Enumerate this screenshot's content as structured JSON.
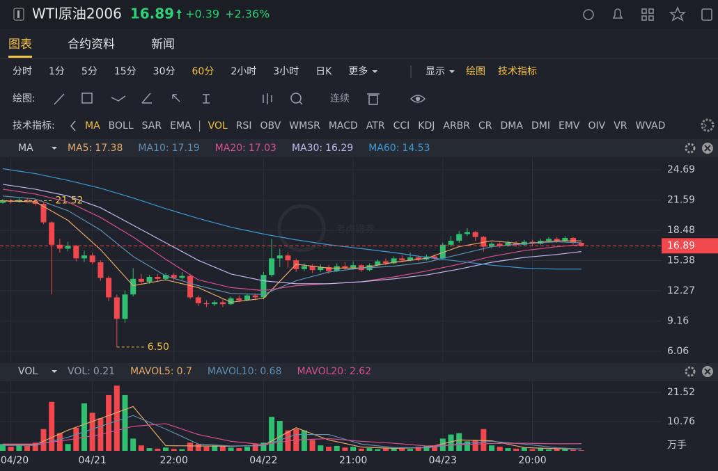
{
  "header": {
    "title": "WTI原油2006",
    "price": 16.89,
    "change": "+0.39",
    "change_pct": "+2.36%"
  },
  "tabs": [
    "图表",
    "合约资料",
    "新闻"
  ],
  "active_tab": 0,
  "periods": [
    "分时",
    "1分",
    "5分",
    "15分",
    "30分",
    "60分",
    "2小时",
    "3小时",
    "日K",
    "更多"
  ],
  "active_period": 5,
  "display_menu": [
    "显示",
    "绘图",
    "技术指标"
  ],
  "draw_tools": {
    "label": "绘图:",
    "continuous": "连续"
  },
  "indicator_bar": {
    "label": "技术指标:",
    "items": [
      "MA",
      "BOLL",
      "SAR",
      "EMA",
      "VOL",
      "RSI",
      "OBV",
      "WMSR",
      "MACD",
      "ATR",
      "CCI",
      "KDJ",
      "ARBR",
      "CR",
      "DMA",
      "DMI",
      "EMV",
      "OIV",
      "VR",
      "WVAD"
    ],
    "active": [
      0,
      4
    ]
  },
  "watermark": "老虎證券",
  "chart_data": [
    {
      "type": "candlestick",
      "indicator": "MA",
      "up_color": "#2fbf71",
      "down_color": "#f0484c",
      "grid": true,
      "xlim": [
        -0.34,
        80.85
      ],
      "ylim": [
        4.99,
        25.98
      ],
      "yticks": [
        24.69,
        21.59,
        18.48,
        15.38,
        12.27,
        9.16,
        6.06
      ],
      "x": [
        0,
        1,
        2,
        3,
        4,
        5,
        6,
        7,
        8,
        9,
        10,
        11,
        12,
        13,
        14,
        15,
        16,
        17,
        18,
        19,
        20,
        21,
        22,
        23,
        24,
        25,
        26,
        27,
        28,
        29,
        30,
        31,
        32,
        33,
        34,
        35,
        36,
        37,
        38,
        39,
        40,
        41,
        42,
        43,
        44,
        45,
        46,
        47,
        48,
        49,
        50,
        51,
        52,
        53,
        54,
        55,
        56,
        57,
        58,
        59,
        60,
        61,
        62,
        63,
        64,
        65,
        66,
        67,
        68,
        69,
        70,
        71
      ],
      "open": [
        21.3,
        21.5,
        21.4,
        21.6,
        21.5,
        21.2,
        19.3,
        17.0,
        16.6,
        16.9,
        15.6,
        15.9,
        15.2,
        13.6,
        11.6,
        9.4,
        11.9,
        13.5,
        13.2,
        13.7,
        13.5,
        13.9,
        13.6,
        13.8,
        11.6,
        11.0,
        10.9,
        11.1,
        10.9,
        11.5,
        11.3,
        11.8,
        11.6,
        13.9,
        15.6,
        15.9,
        15.4,
        14.5,
        14.8,
        14.4,
        14.7,
        14.3,
        14.8,
        14.6,
        14.9,
        14.4,
        14.9,
        15.3,
        15.1,
        15.6,
        15.4,
        15.7,
        15.5,
        15.8,
        15.6,
        17.0,
        17.4,
        18.1,
        18.3,
        17.8,
        16.8,
        17.1,
        16.9,
        17.2,
        17.0,
        17.3,
        17.1,
        17.4,
        17.6,
        17.4,
        17.7,
        17.2
      ],
      "high": [
        21.7,
        21.7,
        21.8,
        21.8,
        21.7,
        21.3,
        19.4,
        17.6,
        17.3,
        17.0,
        16.4,
        16.2,
        15.4,
        13.8,
        11.9,
        12.3,
        14.6,
        14.0,
        13.9,
        14.0,
        14.1,
        14.1,
        14.2,
        13.9,
        11.8,
        11.3,
        11.3,
        11.4,
        11.7,
        11.8,
        12.0,
        12.0,
        14.2,
        17.6,
        16.6,
        16.2,
        15.6,
        15.1,
        15.0,
        15.0,
        14.9,
        15.1,
        15.2,
        15.3,
        15.0,
        15.1,
        15.5,
        15.6,
        15.8,
        15.9,
        16.2,
        15.9,
        16.0,
        16.0,
        17.2,
        17.9,
        18.4,
        18.7,
        18.4,
        17.9,
        17.3,
        17.3,
        17.4,
        17.4,
        17.5,
        17.5,
        17.6,
        17.8,
        17.8,
        17.9,
        17.8,
        17.3
      ],
      "low": [
        21.2,
        21.2,
        21.3,
        21.3,
        21.0,
        19.1,
        11.9,
        16.2,
        16.3,
        15.3,
        15.2,
        15.0,
        13.3,
        11.2,
        6.5,
        9.0,
        11.7,
        12.9,
        13.0,
        13.2,
        13.3,
        13.3,
        13.4,
        11.4,
        10.7,
        10.6,
        10.7,
        10.6,
        10.8,
        11.1,
        11.2,
        11.3,
        11.4,
        13.7,
        14.7,
        14.6,
        14.2,
        14.3,
        14.1,
        14.2,
        14.0,
        14.2,
        14.4,
        14.5,
        14.2,
        14.3,
        14.8,
        14.9,
        15.0,
        15.2,
        15.3,
        15.3,
        15.4,
        15.4,
        15.5,
        16.8,
        17.2,
        17.9,
        17.4,
        16.3,
        16.6,
        16.7,
        16.8,
        16.8,
        16.9,
        16.9,
        17.0,
        17.2,
        17.2,
        17.3,
        17.0,
        16.8
      ],
      "close": [
        21.5,
        21.4,
        21.6,
        21.5,
        21.2,
        19.3,
        17.0,
        16.6,
        16.9,
        15.6,
        15.9,
        15.2,
        13.6,
        11.6,
        9.4,
        11.9,
        13.5,
        13.2,
        13.7,
        13.5,
        13.9,
        13.6,
        13.8,
        11.6,
        11.0,
        10.9,
        11.1,
        10.9,
        11.5,
        11.3,
        11.8,
        11.6,
        13.9,
        15.6,
        15.9,
        15.4,
        14.5,
        14.8,
        14.4,
        14.7,
        14.3,
        14.8,
        14.6,
        14.9,
        14.4,
        14.9,
        15.3,
        15.1,
        15.6,
        15.4,
        15.7,
        15.5,
        15.8,
        15.6,
        17.0,
        17.4,
        18.1,
        18.3,
        17.8,
        16.8,
        17.1,
        16.9,
        17.2,
        17.0,
        17.3,
        17.1,
        17.4,
        17.6,
        17.4,
        17.7,
        17.2,
        16.89
      ],
      "last_price": 16.89,
      "annotations": [
        {
          "x": 2,
          "value": 21.52
        },
        {
          "x": 14,
          "value": 6.5,
          "label": "6.50"
        }
      ],
      "series": [
        {
          "name": "MA5:",
          "last": 17.38,
          "color": "#e7a96b",
          "x": [
            0,
            4,
            8,
            12,
            16,
            20,
            24,
            28,
            32,
            36,
            40,
            44,
            48,
            52,
            56,
            60,
            64,
            68,
            71
          ],
          "values": [
            21.5,
            21.4,
            19.5,
            16.5,
            12.8,
            13.4,
            12.6,
            11.1,
            11.5,
            15.0,
            14.6,
            14.6,
            15.2,
            15.6,
            16.8,
            17.4,
            17.1,
            17.4,
            17.4
          ]
        },
        {
          "name": "MA10:",
          "last": 17.19,
          "color": "#5f8fb5",
          "x": [
            0,
            4,
            8,
            12,
            16,
            20,
            24,
            28,
            32,
            36,
            40,
            44,
            48,
            52,
            56,
            60,
            64,
            68,
            71
          ],
          "values": [
            22.0,
            21.7,
            20.5,
            18.5,
            15.8,
            13.8,
            12.8,
            12.0,
            11.9,
            13.3,
            14.2,
            14.6,
            14.8,
            15.2,
            16.0,
            16.8,
            17.1,
            17.3,
            17.2
          ]
        },
        {
          "name": "MA20:",
          "last": 17.03,
          "color": "#d9508f",
          "x": [
            0,
            4,
            8,
            12,
            16,
            20,
            24,
            28,
            32,
            36,
            40,
            44,
            48,
            52,
            56,
            60,
            64,
            68,
            71
          ],
          "values": [
            22.7,
            22.2,
            21.4,
            19.8,
            17.8,
            15.5,
            13.4,
            12.6,
            12.3,
            12.8,
            13.0,
            13.2,
            13.7,
            14.3,
            15.0,
            15.8,
            16.4,
            16.8,
            17.0
          ]
        },
        {
          "name": "MA30:",
          "last": 16.29,
          "color": "#c6b6f2",
          "x": [
            0,
            4,
            8,
            12,
            16,
            20,
            24,
            28,
            32,
            36,
            40,
            44,
            48,
            52,
            56,
            60,
            64,
            68,
            71
          ],
          "values": [
            23.2,
            22.7,
            22.0,
            20.8,
            19.0,
            17.2,
            15.4,
            14.0,
            13.3,
            13.0,
            13.0,
            13.2,
            13.5,
            13.9,
            14.5,
            15.2,
            15.7,
            16.0,
            16.3
          ]
        },
        {
          "name": "MA60:",
          "last": 14.53,
          "color": "#3d9ad6",
          "x": [
            0,
            4,
            8,
            12,
            16,
            20,
            24,
            28,
            32,
            36,
            40,
            44,
            48,
            52,
            56,
            60,
            64,
            68,
            71
          ],
          "values": [
            24.8,
            24.3,
            23.6,
            22.8,
            21.8,
            20.7,
            19.7,
            18.8,
            18.1,
            17.5,
            17.0,
            16.6,
            16.2,
            15.7,
            15.3,
            14.9,
            14.6,
            14.5,
            14.5
          ]
        }
      ]
    },
    {
      "type": "bar",
      "indicator": "VOL",
      "unit": "万手",
      "grid": true,
      "xlim": [
        -0.34,
        80.85
      ],
      "ylim": [
        0,
        25.6
      ],
      "yticks": [
        21.52,
        10.76
      ],
      "xticks": [
        {
          "value": 1,
          "label": "04/20"
        },
        {
          "value": 11,
          "label": "04/21"
        },
        {
          "value": 21,
          "label": "22:00"
        },
        {
          "value": 32,
          "label": "04/22"
        },
        {
          "value": 43,
          "label": "21:00"
        },
        {
          "value": 54,
          "label": "04/23"
        },
        {
          "value": 65,
          "label": "20:00"
        }
      ],
      "values": [
        2.5,
        1.5,
        2.0,
        1.8,
        3.0,
        8.0,
        18.0,
        6.5,
        2.5,
        8.5,
        17.5,
        14.0,
        12.0,
        20.5,
        24.0,
        20.5,
        4.5,
        2.0,
        1.0,
        0.8,
        1.2,
        0.7,
        0.6,
        3.0,
        2.5,
        1.5,
        2.0,
        1.8,
        1.2,
        1.0,
        1.5,
        2.5,
        3.0,
        12.5,
        11.0,
        7.5,
        8.0,
        7.5,
        4.0,
        2.0,
        1.5,
        1.8,
        1.2,
        1.5,
        0.8,
        1.0,
        0.6,
        1.2,
        1.0,
        0.8,
        0.7,
        1.5,
        1.8,
        2.0,
        4.5,
        6.0,
        6.5,
        3.5,
        4.0,
        8.0,
        2.0,
        1.5,
        1.0,
        0.8,
        1.2,
        0.6,
        0.9,
        0.5,
        0.7,
        0.6,
        0.4,
        0.21
      ],
      "legend_name": "VOL:",
      "legend_value": 0.21,
      "series": [
        {
          "name": "MAVOL5:",
          "last": 0.7,
          "color": "#e7a96b",
          "x": [
            0,
            4,
            8,
            12,
            16,
            20,
            24,
            28,
            32,
            36,
            40,
            44,
            48,
            52,
            56,
            60,
            64,
            68,
            71
          ],
          "values": [
            2.2,
            2.2,
            7.6,
            11.9,
            16.3,
            1.9,
            1.8,
            1.7,
            2.0,
            8.5,
            4.0,
            1.4,
            0.9,
            1.2,
            4.0,
            3.7,
            1.2,
            0.8,
            0.7
          ]
        },
        {
          "name": "MAVOL10:",
          "last": 0.68,
          "color": "#5f8fb5",
          "x": [
            0,
            4,
            8,
            12,
            16,
            20,
            24,
            28,
            32,
            36,
            40,
            44,
            48,
            52,
            56,
            60,
            64,
            68,
            71
          ],
          "values": [
            2.0,
            2.0,
            5.0,
            9.0,
            13.0,
            8.0,
            2.5,
            1.8,
            1.9,
            6.0,
            6.0,
            2.5,
            1.2,
            1.1,
            2.5,
            3.5,
            2.5,
            1.1,
            0.68
          ]
        },
        {
          "name": "MAVOL20:",
          "last": 2.62,
          "color": "#d9508f",
          "x": [
            0,
            4,
            8,
            12,
            16,
            20,
            24,
            28,
            32,
            36,
            40,
            44,
            48,
            52,
            56,
            60,
            64,
            68,
            71
          ],
          "values": [
            2.5,
            2.5,
            4.0,
            6.0,
            9.0,
            10.0,
            6.0,
            3.5,
            2.3,
            4.0,
            4.5,
            3.5,
            2.8,
            1.8,
            2.2,
            2.7,
            2.8,
            2.6,
            2.62
          ]
        }
      ]
    }
  ]
}
